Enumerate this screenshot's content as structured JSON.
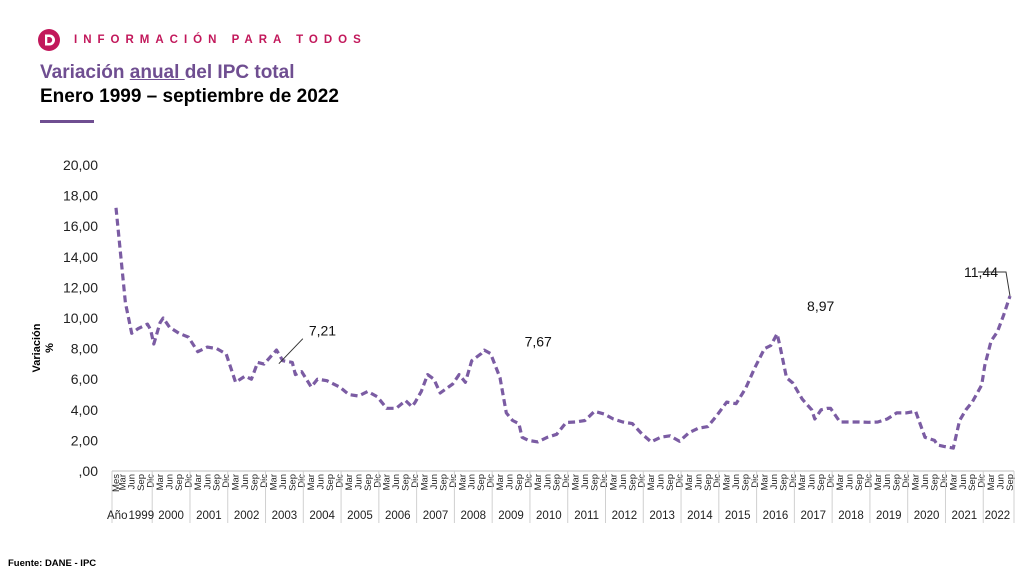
{
  "header": {
    "tagline": "INFORMACIÓN PARA TODOS",
    "logo_icon": "dane-logo-icon",
    "brand_color": "#c2185b"
  },
  "title": {
    "part1": "Variación ",
    "part_underlined": "anual ",
    "part2": "del IPC total",
    "subtitle": "Enero 1999 – septiembre de 2022",
    "accent_color": "#6f4e91"
  },
  "source": "Fuente: DANE - IPC",
  "chart_data": {
    "type": "line",
    "ylabel": "Variación %",
    "ylim": [
      0,
      20
    ],
    "yticks": [
      ",00",
      "2,00",
      "4,00",
      "6,00",
      "8,00",
      "10,00",
      "12,00",
      "14,00",
      "16,00",
      "18,00",
      "20,00"
    ],
    "x_row_label": "Mes",
    "year_row_label": "Año",
    "month_tick_labels": [
      "Mar",
      "Jun",
      "Sep",
      "Dic"
    ],
    "years": [
      "1999",
      "2000",
      "2001",
      "2002",
      "2003",
      "2004",
      "2005",
      "2006",
      "2007",
      "2008",
      "2009",
      "2010",
      "2011",
      "2012",
      "2013",
      "2014",
      "2015",
      "2016",
      "2017",
      "2018",
      "2019",
      "2020",
      "2021",
      "2022"
    ],
    "series_color": "#7b5ca3",
    "line_style": "dashed",
    "grid": false,
    "series": [
      {
        "name": "",
        "anchors": [
          [
            "1999-01",
            17.2
          ],
          [
            "1999-04",
            11.0
          ],
          [
            "1999-06",
            9.0
          ],
          [
            "1999-08",
            9.3
          ],
          [
            "1999-11",
            9.6
          ],
          [
            "1999-12",
            9.23
          ],
          [
            "2000-01",
            8.3
          ],
          [
            "2000-03",
            9.7
          ],
          [
            "2000-04",
            10.0
          ],
          [
            "2000-06",
            9.4
          ],
          [
            "2000-09",
            9.0
          ],
          [
            "2000-12",
            8.75
          ],
          [
            "2001-03",
            7.8
          ],
          [
            "2001-06",
            8.1
          ],
          [
            "2001-09",
            8.0
          ],
          [
            "2001-12",
            7.65
          ],
          [
            "2002-03",
            5.8
          ],
          [
            "2002-06",
            6.2
          ],
          [
            "2002-08",
            6.0
          ],
          [
            "2002-10",
            7.1
          ],
          [
            "2002-12",
            6.99
          ],
          [
            "2003-04",
            7.9
          ],
          [
            "2003-06",
            7.21
          ],
          [
            "2003-09",
            7.1
          ],
          [
            "2003-10",
            6.3
          ],
          [
            "2003-12",
            6.49
          ],
          [
            "2004-03",
            5.5
          ],
          [
            "2004-05",
            6.0
          ],
          [
            "2004-08",
            5.9
          ],
          [
            "2004-12",
            5.5
          ],
          [
            "2005-03",
            5.0
          ],
          [
            "2005-06",
            4.9
          ],
          [
            "2005-09",
            5.2
          ],
          [
            "2005-12",
            4.85
          ],
          [
            "2006-03",
            4.1
          ],
          [
            "2006-06",
            4.1
          ],
          [
            "2006-09",
            4.6
          ],
          [
            "2006-11",
            4.2
          ],
          [
            "2006-12",
            4.48
          ],
          [
            "2007-02",
            5.2
          ],
          [
            "2007-04",
            6.3
          ],
          [
            "2007-06",
            6.0
          ],
          [
            "2007-08",
            5.1
          ],
          [
            "2007-12",
            5.69
          ],
          [
            "2008-02",
            6.3
          ],
          [
            "2008-04",
            5.8
          ],
          [
            "2008-06",
            7.2
          ],
          [
            "2008-09",
            7.67
          ],
          [
            "2008-10",
            7.9
          ],
          [
            "2008-12",
            7.67
          ],
          [
            "2009-03",
            6.1
          ],
          [
            "2009-05",
            3.8
          ],
          [
            "2009-07",
            3.3
          ],
          [
            "2009-09",
            3.1
          ],
          [
            "2009-10",
            2.2
          ],
          [
            "2009-12",
            2.0
          ],
          [
            "2010-03",
            1.9
          ],
          [
            "2010-06",
            2.2
          ],
          [
            "2010-09",
            2.4
          ],
          [
            "2010-12",
            3.17
          ],
          [
            "2011-03",
            3.2
          ],
          [
            "2011-06",
            3.3
          ],
          [
            "2011-09",
            3.9
          ],
          [
            "2011-12",
            3.73
          ],
          [
            "2012-03",
            3.4
          ],
          [
            "2012-06",
            3.2
          ],
          [
            "2012-09",
            3.1
          ],
          [
            "2012-12",
            2.44
          ],
          [
            "2013-03",
            1.9
          ],
          [
            "2013-06",
            2.2
          ],
          [
            "2013-09",
            2.3
          ],
          [
            "2013-12",
            1.94
          ],
          [
            "2014-03",
            2.5
          ],
          [
            "2014-06",
            2.8
          ],
          [
            "2014-09",
            2.9
          ],
          [
            "2014-12",
            3.66
          ],
          [
            "2015-03",
            4.5
          ],
          [
            "2015-06",
            4.4
          ],
          [
            "2015-09",
            5.4
          ],
          [
            "2015-12",
            6.77
          ],
          [
            "2016-03",
            8.0
          ],
          [
            "2016-05",
            8.2
          ],
          [
            "2016-07",
            8.97
          ],
          [
            "2016-08",
            8.1
          ],
          [
            "2016-10",
            6.1
          ],
          [
            "2016-12",
            5.75
          ],
          [
            "2017-03",
            4.7
          ],
          [
            "2017-06",
            4.0
          ],
          [
            "2017-07",
            3.4
          ],
          [
            "2017-09",
            4.0
          ],
          [
            "2017-11",
            4.1
          ],
          [
            "2017-12",
            4.09
          ],
          [
            "2018-03",
            3.2
          ],
          [
            "2018-06",
            3.2
          ],
          [
            "2018-09",
            3.2
          ],
          [
            "2018-12",
            3.18
          ],
          [
            "2019-03",
            3.2
          ],
          [
            "2019-06",
            3.4
          ],
          [
            "2019-09",
            3.8
          ],
          [
            "2019-12",
            3.8
          ],
          [
            "2020-03",
            3.9
          ],
          [
            "2020-06",
            2.2
          ],
          [
            "2020-09",
            2.0
          ],
          [
            "2020-10",
            1.7
          ],
          [
            "2020-12",
            1.61
          ],
          [
            "2021-03",
            1.5
          ],
          [
            "2021-05",
            3.3
          ],
          [
            "2021-07",
            4.0
          ],
          [
            "2021-09",
            4.5
          ],
          [
            "2021-12",
            5.62
          ],
          [
            "2022-01",
            6.9
          ],
          [
            "2022-03",
            8.5
          ],
          [
            "2022-05",
            9.1
          ],
          [
            "2022-07",
            10.2
          ],
          [
            "2022-09",
            11.44
          ]
        ]
      }
    ],
    "annotations": [
      {
        "label": "7,21",
        "at": "2003-06",
        "value": 7.21
      },
      {
        "label": "7,67",
        "at": "2008-12",
        "value": 7.67
      },
      {
        "label": "8,97",
        "at": "2016-07",
        "value": 8.97
      },
      {
        "label": "11,44",
        "at": "2022-09",
        "value": 11.44
      }
    ]
  }
}
